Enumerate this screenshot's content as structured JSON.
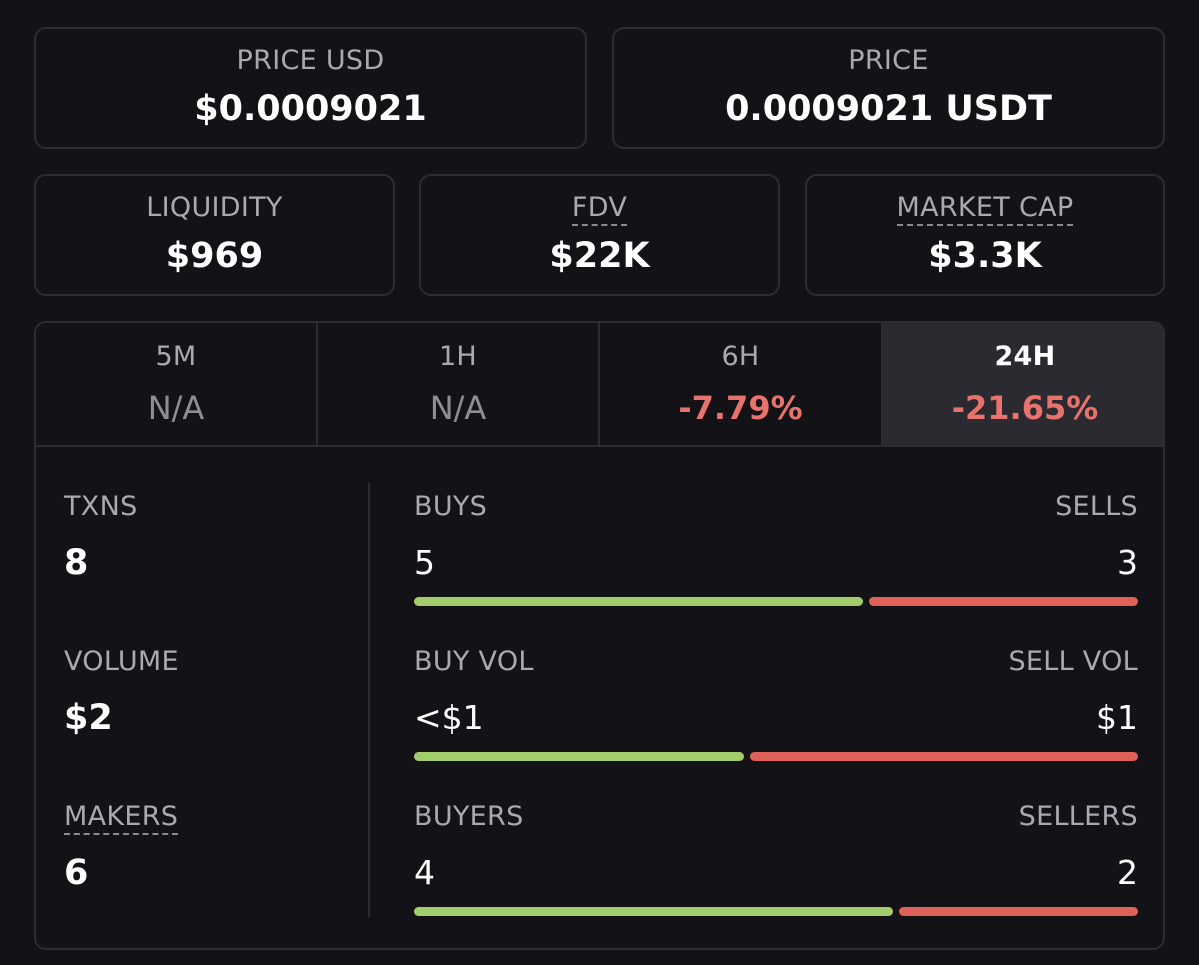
{
  "cards": [
    {
      "label": "PRICE USD",
      "value": "$0.0009021"
    },
    {
      "label": "PRICE",
      "value": "0.0009021 USDT"
    },
    {
      "label": "LIQUIDITY",
      "value": "$969"
    },
    {
      "label": "FDV",
      "value": "$22K"
    },
    {
      "label": "MARKET CAP",
      "value": "$3.3K"
    }
  ],
  "tabs": [
    {
      "label": "5M",
      "value": "N/A"
    },
    {
      "label": "1H",
      "value": "N/A"
    },
    {
      "label": "6H",
      "value": "-7.79%"
    },
    {
      "label": "24H",
      "value": "-21.65%"
    }
  ],
  "stats": [
    {
      "label": "TXNS",
      "value": 8
    },
    {
      "label": "VOLUME",
      "value": "$2"
    },
    {
      "label": "MAKERS",
      "value": 6
    }
  ],
  "splits": [
    {
      "left_label": "BUYS",
      "left_value": 5,
      "right_label": "SELLS",
      "right_value": 3
    },
    {
      "left_label": "BUY VOL",
      "left_value": "<$1",
      "right_label": "SELL VOL",
      "right_value": "$1"
    },
    {
      "left_label": "BUYERS",
      "left_value": 4,
      "right_label": "SELLERS",
      "right_value": 2
    }
  ]
}
